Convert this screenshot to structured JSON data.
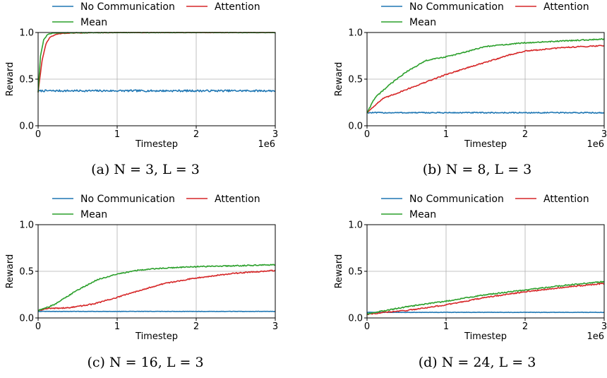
{
  "colors": {
    "no_communication": "#1f77b4",
    "attention": "#d62728",
    "mean": "#2ca02c",
    "grid": "#b0b0b0",
    "axis": "#000000"
  },
  "chart_data": [
    {
      "type": "line",
      "caption": "(a) N = 3, L = 3",
      "xlabel": "Timestep",
      "ylabel": "Reward",
      "x_multiplier": "1e6",
      "xlim": [
        0,
        3
      ],
      "ylim": [
        0,
        1
      ],
      "xticks": [
        "0",
        "1",
        "2",
        "3"
      ],
      "yticks": [
        "0.0",
        "0.5",
        "1.0"
      ],
      "grid": true,
      "legend_placement": "top",
      "series": [
        {
          "name": "No Communication",
          "color_key": "no_communication",
          "noise": 0.01,
          "points": [
            [
              0,
              0.37
            ],
            [
              0.05,
              0.375
            ],
            [
              1,
              0.375
            ],
            [
              2,
              0.375
            ],
            [
              3,
              0.375
            ]
          ]
        },
        {
          "name": "Attention",
          "color_key": "attention",
          "noise": 0.003,
          "points": [
            [
              0,
              0.36
            ],
            [
              0.05,
              0.7
            ],
            [
              0.1,
              0.88
            ],
            [
              0.15,
              0.95
            ],
            [
              0.25,
              0.985
            ],
            [
              0.4,
              0.995
            ],
            [
              1,
              1.0
            ],
            [
              3,
              1.0
            ]
          ]
        },
        {
          "name": "Mean",
          "color_key": "mean",
          "noise": 0.003,
          "points": [
            [
              0,
              0.36
            ],
            [
              0.03,
              0.75
            ],
            [
              0.07,
              0.92
            ],
            [
              0.12,
              0.98
            ],
            [
              0.2,
              0.995
            ],
            [
              1,
              1.0
            ],
            [
              3,
              1.0
            ]
          ]
        }
      ]
    },
    {
      "type": "line",
      "caption": "(b) N = 8, L = 3",
      "xlabel": "Timestep",
      "ylabel": "Reward",
      "x_multiplier": "1e6",
      "xlim": [
        0,
        3
      ],
      "ylim": [
        0,
        1
      ],
      "xticks": [
        "0",
        "1",
        "2",
        "3"
      ],
      "yticks": [
        "0.0",
        "0.5",
        "1.0"
      ],
      "grid": true,
      "legend_placement": "top",
      "series": [
        {
          "name": "No Communication",
          "color_key": "no_communication",
          "noise": 0.006,
          "points": [
            [
              0,
              0.14
            ],
            [
              3,
              0.14
            ]
          ]
        },
        {
          "name": "Attention",
          "color_key": "attention",
          "noise": 0.006,
          "points": [
            [
              0,
              0.14
            ],
            [
              0.1,
              0.22
            ],
            [
              0.2,
              0.29
            ],
            [
              0.5,
              0.39
            ],
            [
              0.75,
              0.47
            ],
            [
              1,
              0.55
            ],
            [
              1.3,
              0.63
            ],
            [
              1.5,
              0.68
            ],
            [
              1.8,
              0.76
            ],
            [
              2,
              0.8
            ],
            [
              2.5,
              0.84
            ],
            [
              3,
              0.86
            ]
          ]
        },
        {
          "name": "Mean",
          "color_key": "mean",
          "noise": 0.006,
          "points": [
            [
              0,
              0.14
            ],
            [
              0.1,
              0.3
            ],
            [
              0.3,
              0.45
            ],
            [
              0.5,
              0.58
            ],
            [
              0.75,
              0.7
            ],
            [
              1,
              0.74
            ],
            [
              1.2,
              0.78
            ],
            [
              1.5,
              0.85
            ],
            [
              2,
              0.89
            ],
            [
              2.5,
              0.91
            ],
            [
              3,
              0.93
            ]
          ]
        }
      ]
    },
    {
      "type": "line",
      "caption": "(c) N = 16, L = 3",
      "xlabel": "Timestep",
      "ylabel": "Reward",
      "x_multiplier": "",
      "xlim": [
        0,
        3
      ],
      "ylim": [
        0,
        1
      ],
      "xticks": [
        "0",
        "1",
        "2",
        "3"
      ],
      "yticks": [
        "0.0",
        "0.5",
        "1.0"
      ],
      "grid": true,
      "legend_placement": "top",
      "series": [
        {
          "name": "No Communication",
          "color_key": "no_communication",
          "noise": 0.002,
          "points": [
            [
              0,
              0.07
            ],
            [
              3,
              0.07
            ]
          ]
        },
        {
          "name": "Attention",
          "color_key": "attention",
          "noise": 0.006,
          "points": [
            [
              0,
              0.08
            ],
            [
              0.1,
              0.1
            ],
            [
              0.4,
              0.11
            ],
            [
              0.7,
              0.15
            ],
            [
              1,
              0.22
            ],
            [
              1.3,
              0.3
            ],
            [
              1.6,
              0.37
            ],
            [
              2,
              0.43
            ],
            [
              2.5,
              0.48
            ],
            [
              3,
              0.51
            ]
          ]
        },
        {
          "name": "Mean",
          "color_key": "mean",
          "noise": 0.006,
          "points": [
            [
              0,
              0.08
            ],
            [
              0.2,
              0.14
            ],
            [
              0.5,
              0.3
            ],
            [
              0.75,
              0.41
            ],
            [
              1,
              0.47
            ],
            [
              1.25,
              0.51
            ],
            [
              1.5,
              0.53
            ],
            [
              2,
              0.55
            ],
            [
              2.5,
              0.56
            ],
            [
              3,
              0.57
            ]
          ]
        }
      ]
    },
    {
      "type": "line",
      "caption": "(d) N = 24, L = 3",
      "xlabel": "Timestep",
      "ylabel": "Reward",
      "x_multiplier": "1e6",
      "xlim": [
        0,
        3
      ],
      "ylim": [
        0,
        1
      ],
      "xticks": [
        "0",
        "1",
        "2",
        "3"
      ],
      "yticks": [
        "0.0",
        "0.5",
        "1.0"
      ],
      "grid": true,
      "legend_placement": "top",
      "series": [
        {
          "name": "No Communication",
          "color_key": "no_communication",
          "noise": 0.002,
          "points": [
            [
              0,
              0.06
            ],
            [
              3,
              0.06
            ]
          ]
        },
        {
          "name": "Attention",
          "color_key": "attention",
          "noise": 0.006,
          "points": [
            [
              0,
              0.04
            ],
            [
              0.1,
              0.05
            ],
            [
              0.5,
              0.08
            ],
            [
              1,
              0.14
            ],
            [
              1.5,
              0.22
            ],
            [
              2,
              0.28
            ],
            [
              2.5,
              0.33
            ],
            [
              3,
              0.37
            ]
          ]
        },
        {
          "name": "Mean",
          "color_key": "mean",
          "noise": 0.006,
          "points": [
            [
              0,
              0.04
            ],
            [
              0.1,
              0.06
            ],
            [
              0.5,
              0.12
            ],
            [
              1,
              0.18
            ],
            [
              1.5,
              0.25
            ],
            [
              2,
              0.3
            ],
            [
              2.5,
              0.35
            ],
            [
              3,
              0.39
            ]
          ]
        }
      ]
    }
  ]
}
